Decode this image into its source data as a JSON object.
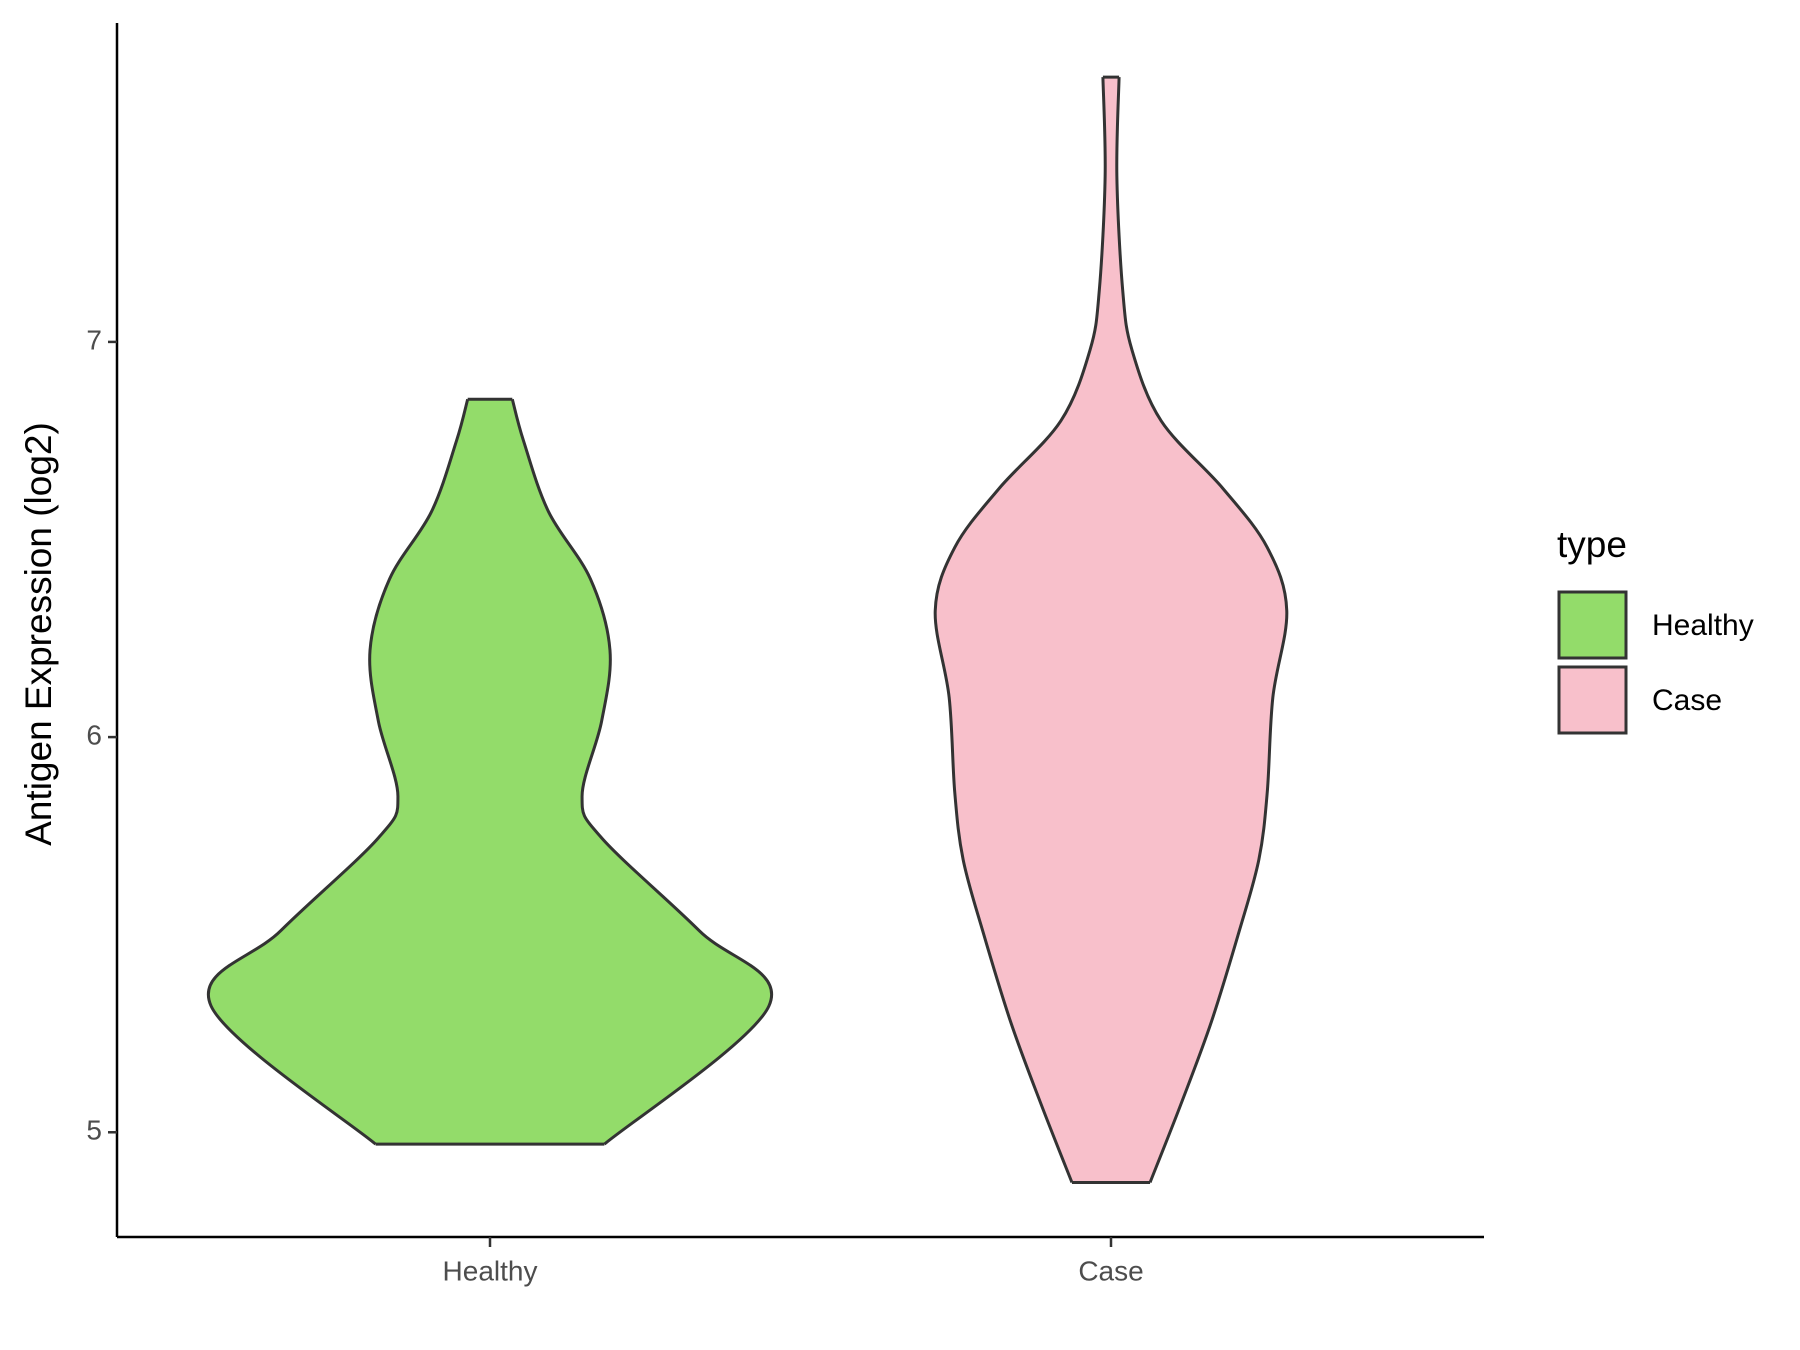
{
  "chart_data": {
    "type": "violin",
    "y_label": "Antigen Expression (log2)",
    "categories": [
      "Healthy",
      "Case"
    ],
    "series": [
      {
        "name": "Healthy",
        "color": "#93dc6a",
        "y": [
          4.97,
          5.32,
          5.51,
          5.745,
          5.85,
          6.04,
          6.22,
          6.4,
          6.57,
          6.75,
          6.855
        ],
        "density": [
          0.41,
          1.0,
          0.75,
          0.4,
          0.33,
          0.4,
          0.43,
          0.36,
          0.21,
          0.12,
          0.08
        ]
      },
      {
        "name": "Case",
        "color": "#f8c0cb",
        "y": [
          4.873,
          5.07,
          5.28,
          5.51,
          5.69,
          5.86,
          6.1,
          6.32,
          6.48,
          6.63,
          6.8,
          6.98,
          7.13,
          7.42,
          7.67
        ],
        "density": [
          0.14,
          0.25,
          0.36,
          0.46,
          0.53,
          0.56,
          0.58,
          0.63,
          0.56,
          0.4,
          0.18,
          0.075,
          0.042,
          0.021,
          0.029
        ]
      }
    ],
    "ylim": [
      4.735,
      7.807
    ],
    "yticks": [
      5,
      6,
      7
    ],
    "legend_title": "type",
    "legend_position": "right"
  }
}
